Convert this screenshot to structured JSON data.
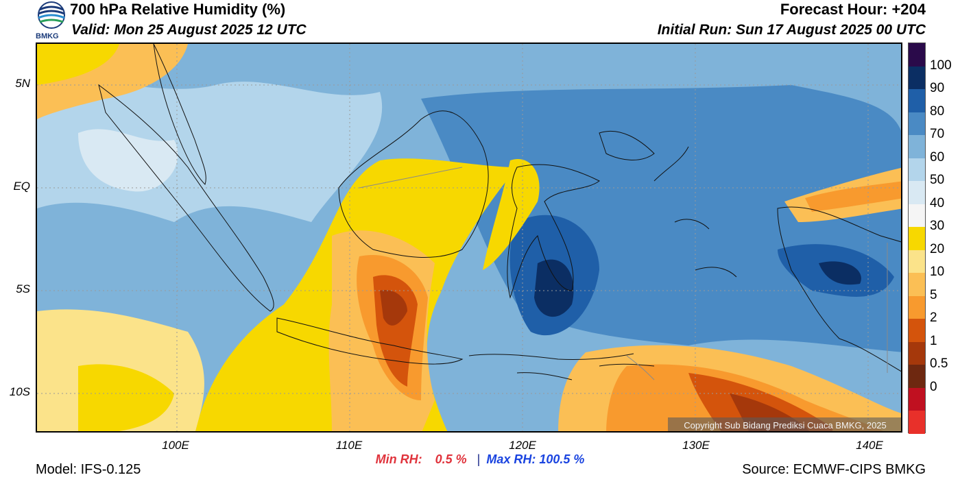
{
  "header": {
    "title": "700 hPa Relative Humidity (%)",
    "valid": "Valid: Mon 25 August 2025 12 UTC",
    "forecast_hour": "Forecast Hour: +204",
    "initial_run": "Initial Run: Sun 17 August 2025 00 UTC"
  },
  "logo": {
    "text": "BMKG"
  },
  "map": {
    "lat_labels": [
      "5N",
      "EQ",
      "5S",
      "10S"
    ],
    "lon_labels": [
      "100E",
      "110E",
      "120E",
      "130E",
      "140E"
    ],
    "copyright": "Copyright Sub Bidang Prediksi Cuaca BMKG, 2025"
  },
  "stats": {
    "min_label": "Min RH:",
    "min_value": "0.5 %",
    "separator": "|",
    "max_label": "Max RH: 100.5 %"
  },
  "footer": {
    "model": "Model: IFS-0.125",
    "source": "Source: ECMWF-CIPS BMKG"
  },
  "colorbar": {
    "labels": [
      "100",
      "90",
      "80",
      "70",
      "60",
      "50",
      "40",
      "30",
      "20",
      "10",
      "5",
      "2",
      "1",
      "0.5",
      "0"
    ],
    "colors": [
      "#2a0a4a",
      "#0b2e63",
      "#1f5fa8",
      "#4a8ac4",
      "#7fb3d9",
      "#b3d5eb",
      "#d9e9f3",
      "#f5f5f5",
      "#f7d800",
      "#fbe38a",
      "#fbbf55",
      "#f89a2e",
      "#d4540c",
      "#a5380b",
      "#6e2810",
      "#c01020",
      "#e8302a"
    ]
  }
}
